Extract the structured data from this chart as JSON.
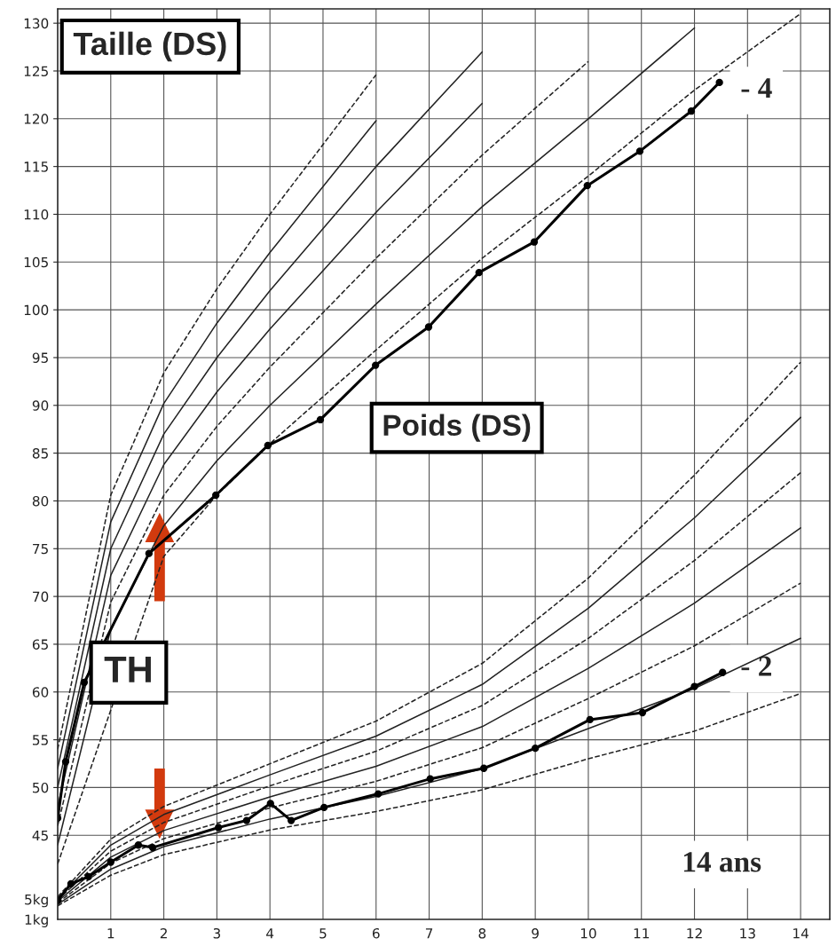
{
  "chart_data": {
    "type": "line",
    "annotations": [
      "Taille (DS)",
      "Poids (DS)",
      "TH",
      "- 4",
      "- 2",
      "14 ans"
    ],
    "xlim": [
      0,
      14.55
    ],
    "xticks": [
      1,
      2,
      3,
      4,
      5,
      6,
      7,
      8,
      9,
      10,
      11,
      12,
      13,
      14
    ],
    "ylim": [
      36.2,
      131.5
    ],
    "yticks": [
      45,
      50,
      55,
      60,
      65,
      70,
      75,
      80,
      85,
      90,
      95,
      100,
      105,
      110,
      115,
      120,
      125,
      130
    ],
    "y2lim": [
      1,
      182.4
    ],
    "y2ticks": [
      {
        "value": 1,
        "label": "1kg"
      },
      {
        "value": 5,
        "label": "5kg"
      }
    ],
    "grid": true,
    "series": [
      {
        "color": "#222222",
        "line_style": "dashed",
        "marker": "none",
        "x": [
          0,
          1,
          2,
          3,
          4,
          6,
          8,
          10,
          12,
          14
        ],
        "values": [
          42,
          null,
          74.2,
          80.6,
          86,
          95.8,
          105.4,
          114,
          123,
          131
        ]
      },
      {
        "color": "#222222",
        "line_style": "solid",
        "marker": "none",
        "x": [
          0,
          1,
          2,
          3,
          4,
          6,
          8,
          10,
          12
        ],
        "values": [
          44,
          66.6,
          77.4,
          84.2,
          90,
          100.6,
          110.8,
          120,
          129.5
        ]
      },
      {
        "color": "#222222",
        "line_style": "dashed",
        "marker": "none",
        "x": [
          0,
          1,
          2,
          3,
          4,
          6,
          8,
          10
        ],
        "values": [
          46,
          69.4,
          80.6,
          87.8,
          94,
          105.4,
          116.2,
          126
        ]
      },
      {
        "color": "#222222",
        "line_style": "solid",
        "marker": "none",
        "x": [
          0,
          1,
          2,
          3,
          4,
          6,
          8
        ],
        "values": [
          48,
          72.2,
          83.8,
          91.4,
          98,
          110.2,
          121.6
        ]
      },
      {
        "color": "#222222",
        "line_style": "solid",
        "marker": "none",
        "x": [
          0,
          1,
          2,
          3,
          4,
          6,
          8
        ],
        "values": [
          50,
          75,
          87,
          95,
          102,
          115,
          127
        ]
      },
      {
        "color": "#222222",
        "line_style": "solid",
        "marker": "none",
        "x": [
          0,
          1,
          2,
          3,
          4,
          6
        ],
        "values": [
          52,
          77.8,
          90.2,
          98.6,
          106,
          119.8
        ]
      },
      {
        "color": "#222222",
        "line_style": "dashed",
        "marker": "none",
        "x": [
          0,
          1,
          2,
          3,
          4,
          6
        ],
        "values": [
          54,
          80.6,
          93.4,
          102.2,
          110,
          124.6
        ]
      },
      {
        "color": "#000000",
        "line_style": "solid",
        "marker": "circle",
        "x": [
          0,
          0.15,
          0.5,
          1.72,
          2.98,
          3.96,
          4.95,
          5.99,
          6.99,
          7.94,
          8.98,
          9.98,
          10.97,
          11.94,
          12.47
        ],
        "values": [
          46.8,
          52.7,
          61,
          74.5,
          80.6,
          85.8,
          88.5,
          94.2,
          98.2,
          103.9,
          107.1,
          113,
          116.6,
          120.8,
          123.8
        ]
      },
      {
        "axis": "y2",
        "color": "#222222",
        "line_style": "dashed",
        "marker": "none",
        "x": [
          0,
          1,
          2,
          4,
          6,
          8,
          10,
          12,
          14
        ],
        "values": [
          3.7,
          9.8,
          13.9,
          18.8,
          22.5,
          26.8,
          33,
          38.5,
          46
        ]
      },
      {
        "axis": "y2",
        "color": "#222222",
        "line_style": "solid",
        "marker": "none",
        "x": [
          0,
          1,
          2,
          4,
          6,
          8,
          10,
          12,
          14
        ],
        "values": [
          4,
          11,
          15.5,
          21,
          25.5,
          31,
          39,
          47,
          57
        ]
      },
      {
        "axis": "y2",
        "color": "#222222",
        "line_style": "dashed",
        "marker": "none",
        "x": [
          0,
          1,
          2,
          4,
          6,
          8,
          10,
          12,
          14
        ],
        "values": [
          4.3,
          12.2,
          17.1,
          23.2,
          28.5,
          35.2,
          45,
          55.5,
          68
        ]
      },
      {
        "axis": "y2",
        "color": "#222222",
        "line_style": "solid",
        "marker": "none",
        "x": [
          0,
          1,
          2,
          4,
          6,
          8,
          10,
          12,
          14
        ],
        "values": [
          4.6,
          13.4,
          18.7,
          25.4,
          31.5,
          39.4,
          51,
          64,
          79
        ]
      },
      {
        "axis": "y2",
        "color": "#222222",
        "line_style": "dashed",
        "marker": "none",
        "x": [
          0,
          1,
          2,
          4,
          6,
          8,
          10,
          12,
          14
        ],
        "values": [
          4.9,
          14.6,
          20.3,
          27.6,
          34.5,
          43.6,
          57,
          72.5,
          90
        ]
      },
      {
        "axis": "y2",
        "color": "#222222",
        "line_style": "solid",
        "marker": "none",
        "x": [
          0,
          1,
          2,
          4,
          6,
          8,
          10,
          12,
          14
        ],
        "values": [
          5.2,
          15.8,
          21.9,
          29.8,
          37.5,
          47.8,
          63,
          81,
          101
        ]
      },
      {
        "axis": "y2",
        "color": "#222222",
        "line_style": "dashed",
        "marker": "none",
        "x": [
          0,
          1,
          2,
          4,
          6,
          8,
          10,
          12,
          14
        ],
        "values": [
          5.5,
          17,
          23.5,
          32,
          40.5,
          52,
          69,
          89.5,
          112
        ]
      },
      {
        "axis": "y2",
        "color": "#000000",
        "line_style": "solid",
        "marker": "circle",
        "x": [
          0,
          0.25,
          0.58,
          1,
          1.52,
          1.79,
          3.03,
          3.56,
          4.01,
          4.4,
          5.02,
          6.04,
          7.02,
          8.03,
          9,
          10.03,
          11.02,
          12,
          12.53
        ],
        "values": [
          4.8,
          8.1,
          9.5,
          12.4,
          15.8,
          15.3,
          19.3,
          20.7,
          24.1,
          20.7,
          23.3,
          26,
          29,
          31.1,
          35.1,
          40.8,
          42.2,
          47.4,
          50.2
        ]
      }
    ]
  }
}
